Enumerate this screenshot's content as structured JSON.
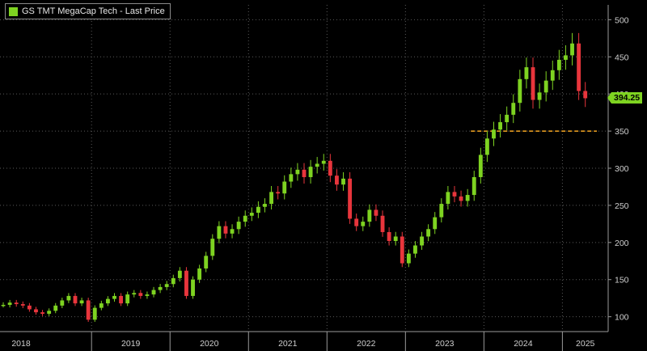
{
  "legend": {
    "label": "GS TMT MegaCap Tech - Last Price",
    "swatch_color": "#7ed321"
  },
  "last_price_badge": {
    "value": "394.25",
    "color": "#7ed321"
  },
  "colors": {
    "up": "#7ed321",
    "down": "#e8353c",
    "support": "#f5a623",
    "grid": "#5a5a5a",
    "axis": "#9a9a9a"
  },
  "chart_data": {
    "type": "line",
    "title": "GS TMT MegaCap Tech - Last Price",
    "xlabel": "",
    "ylabel": "",
    "x_ticks": [
      "2018",
      "2019",
      "2020",
      "2021",
      "2022",
      "2023",
      "2024",
      "2025"
    ],
    "y_ticks": [
      100,
      150,
      200,
      250,
      300,
      350,
      400,
      450,
      500
    ],
    "xlim": [
      "2017-11",
      "2025-08"
    ],
    "ylim": [
      80,
      520
    ],
    "y_axis_position": "right",
    "grid": true,
    "legend_position": "top-left",
    "series": [
      {
        "name": "GS TMT MegaCap Tech - Last Price",
        "x": [
          "2017-11",
          "2017-12",
          "2018-01",
          "2018-02",
          "2018-03",
          "2018-04",
          "2018-05",
          "2018-06",
          "2018-07",
          "2018-08",
          "2018-09",
          "2018-10",
          "2018-11",
          "2018-12",
          "2019-01",
          "2019-02",
          "2019-03",
          "2019-04",
          "2019-05",
          "2019-06",
          "2019-07",
          "2019-08",
          "2019-09",
          "2019-10",
          "2019-11",
          "2019-12",
          "2020-01",
          "2020-02",
          "2020-03",
          "2020-04",
          "2020-05",
          "2020-06",
          "2020-07",
          "2020-08",
          "2020-09",
          "2020-10",
          "2020-11",
          "2020-12",
          "2021-01",
          "2021-02",
          "2021-03",
          "2021-04",
          "2021-05",
          "2021-06",
          "2021-07",
          "2021-08",
          "2021-09",
          "2021-10",
          "2021-11",
          "2021-12",
          "2022-01",
          "2022-02",
          "2022-03",
          "2022-04",
          "2022-05",
          "2022-06",
          "2022-07",
          "2022-08",
          "2022-09",
          "2022-10",
          "2022-11",
          "2022-12",
          "2023-01",
          "2023-02",
          "2023-03",
          "2023-04",
          "2023-05",
          "2023-06",
          "2023-07",
          "2023-08",
          "2023-09",
          "2023-10",
          "2023-11",
          "2023-12",
          "2024-01",
          "2024-02",
          "2024-03",
          "2024-04",
          "2024-05",
          "2024-06",
          "2024-07",
          "2024-08",
          "2024-09",
          "2024-10",
          "2024-11",
          "2024-12",
          "2025-01",
          "2025-02",
          "2025-03",
          "2025-04"
        ],
        "values": [
          116,
          119,
          117,
          115,
          110,
          106,
          104,
          108,
          115,
          122,
          128,
          118,
          122,
          96,
          112,
          118,
          124,
          128,
          118,
          130,
          132,
          128,
          130,
          136,
          140,
          144,
          152,
          162,
          128,
          150,
          165,
          182,
          205,
          222,
          212,
          218,
          228,
          236,
          240,
          248,
          252,
          268,
          266,
          282,
          292,
          298,
          288,
          302,
          306,
          310,
          290,
          278,
          286,
          232,
          222,
          228,
          244,
          236,
          214,
          202,
          208,
          172,
          185,
          196,
          208,
          218,
          234,
          252,
          268,
          262,
          256,
          264,
          288,
          318,
          340,
          352,
          362,
          372,
          388,
          420,
          436,
          392,
          402,
          418,
          432,
          446,
          452,
          468,
          404,
          394.25
        ]
      }
    ],
    "support_level": 350
  }
}
